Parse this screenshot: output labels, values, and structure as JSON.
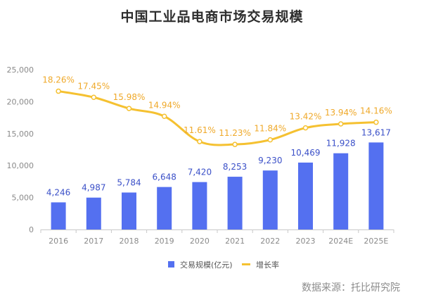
{
  "chart_data": {
    "type": "bar",
    "title": "中国工业品电商市场交易规模",
    "categories": [
      "2016",
      "2017",
      "2018",
      "2019",
      "2020",
      "2021",
      "2022",
      "2023",
      "2024E",
      "2025E"
    ],
    "series": [
      {
        "name": "交易规模(亿元)",
        "type": "bar",
        "values": [
          4246,
          4987,
          5784,
          6648,
          7420,
          8253,
          9230,
          10469,
          11928,
          13617
        ],
        "labels": [
          "4,246",
          "4,987",
          "5,784",
          "6,648",
          "7,420",
          "8,253",
          "9,230",
          "10,469",
          "11,928",
          "13,617"
        ],
        "color": "#5470f0",
        "label_color": "#3b50c8"
      },
      {
        "name": "增长率",
        "type": "line",
        "values": [
          18.26,
          17.45,
          15.98,
          14.94,
          11.61,
          11.23,
          11.84,
          13.42,
          13.94,
          14.16
        ],
        "labels": [
          "18.26%",
          "17.45%",
          "15.98%",
          "14.94%",
          "11.61%",
          "11.23%",
          "11.84%",
          "13.42%",
          "13.94%",
          "14.16%"
        ],
        "color": "#f5c131",
        "label_color": "#efa92a"
      }
    ],
    "y_ticks": [
      "0",
      "5,000",
      "10,000",
      "15,000",
      "20,000",
      "25,000"
    ],
    "ylim": [
      0,
      25000
    ],
    "line_value_range": [
      0,
      21.1
    ],
    "grid": false,
    "legend_position": "bottom-center",
    "source": "数据来源：托比研究院"
  }
}
